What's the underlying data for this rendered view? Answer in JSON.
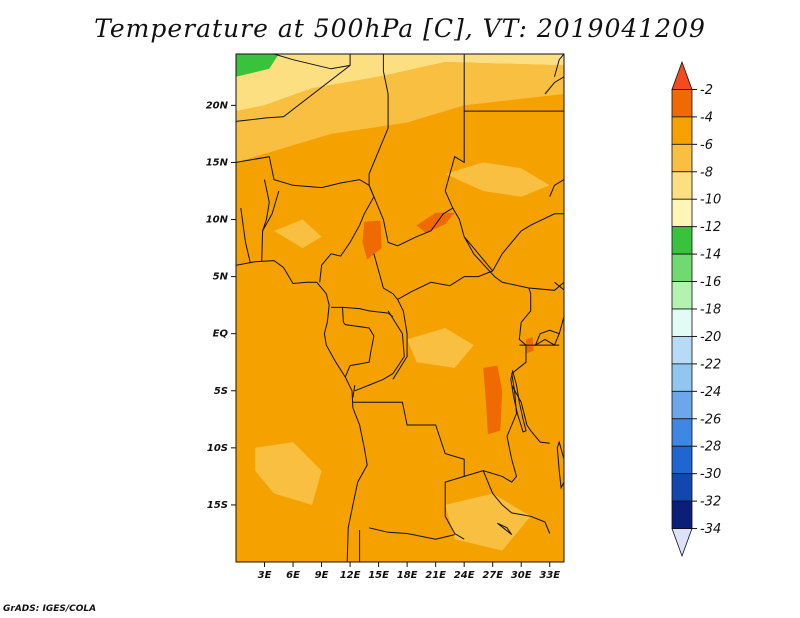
{
  "title": "Temperature at 500hPa [C], VT: 2019041209",
  "credit": "GrADS: IGES/COLA",
  "map": {
    "lat_range": [
      -20,
      24.5
    ],
    "lon_range": [
      0,
      34.5
    ],
    "lat_ticks": [
      {
        "value": 20,
        "label": "20N"
      },
      {
        "value": 15,
        "label": "15N"
      },
      {
        "value": 10,
        "label": "10N"
      },
      {
        "value": 5,
        "label": "5N"
      },
      {
        "value": 0,
        "label": "EQ"
      },
      {
        "value": -5,
        "label": "5S"
      },
      {
        "value": -10,
        "label": "10S"
      },
      {
        "value": -15,
        "label": "15S"
      }
    ],
    "lon_ticks": [
      {
        "value": 3,
        "label": "3E"
      },
      {
        "value": 6,
        "label": "6E"
      },
      {
        "value": 9,
        "label": "9E"
      },
      {
        "value": 12,
        "label": "12E"
      },
      {
        "value": 15,
        "label": "15E"
      },
      {
        "value": 18,
        "label": "18E"
      },
      {
        "value": 21,
        "label": "21E"
      },
      {
        "value": 24,
        "label": "24E"
      },
      {
        "value": 27,
        "label": "27E"
      },
      {
        "value": 30,
        "label": "30E"
      },
      {
        "value": 33,
        "label": "33E"
      }
    ]
  },
  "colorbar": {
    "labels": [
      "-2",
      "-4",
      "-6",
      "-8",
      "-10",
      "-12",
      "-14",
      "-16",
      "-18",
      "-20",
      "-22",
      "-24",
      "-26",
      "-28",
      "-30",
      "-32",
      "-34"
    ],
    "colors": [
      "#f54a1e",
      "#ef6a00",
      "#f5a100",
      "#f8bf40",
      "#fbdf80",
      "#fff5b8",
      "#39c33c",
      "#6fda6f",
      "#b3f2b0",
      "#e2fbf5",
      "#b6dcf5",
      "#91c6f0",
      "#6aa8ea",
      "#3e88e3",
      "#1e67d1",
      "#1048b0",
      "#0a1f78",
      "#dde2fb"
    ]
  },
  "fields": {
    "base_color": "#f5a100",
    "regions": [
      {
        "name": "polar-green",
        "color": "#39c33c",
        "points": [
          [
            0,
            24.5
          ],
          [
            4.5,
            24.5
          ],
          [
            3.5,
            23.2
          ],
          [
            0,
            22.5
          ]
        ]
      },
      {
        "name": "north-light-yellow",
        "color": "#fbdf80",
        "points": [
          [
            0,
            22.5
          ],
          [
            3.5,
            23.2
          ],
          [
            4.5,
            24.5
          ],
          [
            34.5,
            24.5
          ],
          [
            34.5,
            23.5
          ],
          [
            22,
            23.8
          ],
          [
            15,
            22.5
          ],
          [
            8,
            21.5
          ],
          [
            3,
            20
          ],
          [
            0,
            19.5
          ]
        ]
      },
      {
        "name": "north-band-8",
        "color": "#f8bf40",
        "points": [
          [
            0,
            19.5
          ],
          [
            3,
            20
          ],
          [
            8,
            21.5
          ],
          [
            15,
            22.5
          ],
          [
            22,
            23.8
          ],
          [
            34.5,
            23.5
          ],
          [
            34.5,
            21
          ],
          [
            24,
            20
          ],
          [
            18,
            18.5
          ],
          [
            10,
            17.5
          ],
          [
            4,
            16
          ],
          [
            0,
            15
          ]
        ]
      },
      {
        "name": "upper-orange-patch",
        "color": "#f8bf40",
        "points": [
          [
            22,
            14
          ],
          [
            26,
            15
          ],
          [
            30,
            14.5
          ],
          [
            33,
            13
          ],
          [
            30,
            12
          ],
          [
            26,
            12.5
          ]
        ]
      },
      {
        "name": "west-coast-patch",
        "color": "#f8bf40",
        "points": [
          [
            4,
            9
          ],
          [
            7,
            10
          ],
          [
            9,
            8.5
          ],
          [
            7,
            7.5
          ]
        ]
      },
      {
        "name": "hot-spot-chad",
        "color": "#ef6a00",
        "points": [
          [
            13.5,
            9.8
          ],
          [
            15.2,
            9.9
          ],
          [
            15.3,
            7.5
          ],
          [
            13.8,
            6.5
          ],
          [
            13.3,
            8
          ]
        ]
      },
      {
        "name": "hot-spot-car",
        "color": "#ef6a00",
        "points": [
          [
            19,
            9.5
          ],
          [
            21,
            10.6
          ],
          [
            23,
            10.6
          ],
          [
            22,
            9.6
          ],
          [
            20,
            8.8
          ]
        ]
      },
      {
        "name": "hot-spot-drc",
        "color": "#ef6a00",
        "points": [
          [
            26,
            -3
          ],
          [
            27.5,
            -2.8
          ],
          [
            28,
            -5
          ],
          [
            27.8,
            -8.5
          ],
          [
            26.5,
            -8.8
          ],
          [
            26.3,
            -6
          ]
        ]
      },
      {
        "name": "hot-spot-lake",
        "color": "#ef6a00",
        "points": [
          [
            30.5,
            -0.5
          ],
          [
            31.2,
            -0.3
          ],
          [
            31.3,
            -1.5
          ],
          [
            30.6,
            -1.7
          ]
        ]
      },
      {
        "name": "central-light-patch",
        "color": "#f8bf40",
        "points": [
          [
            18,
            -0.5
          ],
          [
            22,
            0.5
          ],
          [
            25,
            -1
          ],
          [
            23,
            -3
          ],
          [
            19,
            -2.5
          ]
        ]
      },
      {
        "name": "south-west-patch",
        "color": "#f8bf40",
        "points": [
          [
            2,
            -10
          ],
          [
            6,
            -9.5
          ],
          [
            9,
            -12
          ],
          [
            8,
            -15
          ],
          [
            4,
            -14
          ],
          [
            2,
            -12
          ]
        ]
      },
      {
        "name": "south-patch",
        "color": "#f8bf40",
        "points": [
          [
            22,
            -15
          ],
          [
            27,
            -14
          ],
          [
            31,
            -16
          ],
          [
            28,
            -19
          ],
          [
            23,
            -18
          ]
        ]
      }
    ]
  }
}
